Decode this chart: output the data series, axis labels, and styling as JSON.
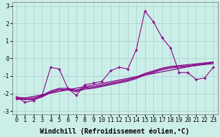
{
  "xlabel": "Windchill (Refroidissement éolien,°C)",
  "background_color": "#cceee8",
  "grid_color": "#aad4ce",
  "line_color": "#880088",
  "xlim": [
    -0.5,
    23.5
  ],
  "ylim": [
    -3.2,
    3.2
  ],
  "xticks": [
    0,
    1,
    2,
    3,
    4,
    5,
    6,
    7,
    8,
    9,
    10,
    11,
    12,
    13,
    14,
    15,
    16,
    17,
    18,
    19,
    20,
    21,
    22,
    23
  ],
  "yticks": [
    -3,
    -2,
    -1,
    0,
    1,
    2,
    3
  ],
  "main_series": [
    -2.2,
    -2.5,
    -2.4,
    -2.1,
    -0.5,
    -0.6,
    -1.7,
    -2.1,
    -1.5,
    -1.4,
    -1.3,
    -0.7,
    -0.5,
    -0.6,
    0.5,
    2.7,
    2.1,
    1.2,
    0.6,
    -0.8,
    -0.8,
    -1.2,
    -1.1,
    -0.5
  ],
  "smooth_lines": [
    [
      -2.25,
      -2.3,
      -2.3,
      -2.15,
      -1.9,
      -1.75,
      -1.75,
      -1.85,
      -1.7,
      -1.65,
      -1.55,
      -1.45,
      -1.35,
      -1.25,
      -1.1,
      -0.9,
      -0.75,
      -0.6,
      -0.5,
      -0.45,
      -0.4,
      -0.35,
      -0.3,
      -0.25
    ],
    [
      -2.3,
      -2.35,
      -2.35,
      -2.2,
      -1.95,
      -1.8,
      -1.8,
      -1.9,
      -1.75,
      -1.7,
      -1.6,
      -1.5,
      -1.4,
      -1.3,
      -1.15,
      -0.95,
      -0.8,
      -0.65,
      -0.55,
      -0.5,
      -0.45,
      -0.4,
      -0.35,
      -0.3
    ],
    [
      -2.2,
      -2.25,
      -2.25,
      -2.1,
      -1.85,
      -1.7,
      -1.7,
      -1.8,
      -1.65,
      -1.6,
      -1.5,
      -1.4,
      -1.3,
      -1.2,
      -1.05,
      -0.85,
      -0.7,
      -0.55,
      -0.45,
      -0.4,
      -0.35,
      -0.3,
      -0.25,
      -0.2
    ]
  ],
  "reg_line": [
    [
      -2.35,
      -0.2
    ],
    [
      0,
      23
    ]
  ],
  "xlabel_fontsize": 7,
  "tick_fontsize": 6,
  "figsize": [
    3.2,
    2.0
  ],
  "dpi": 100
}
